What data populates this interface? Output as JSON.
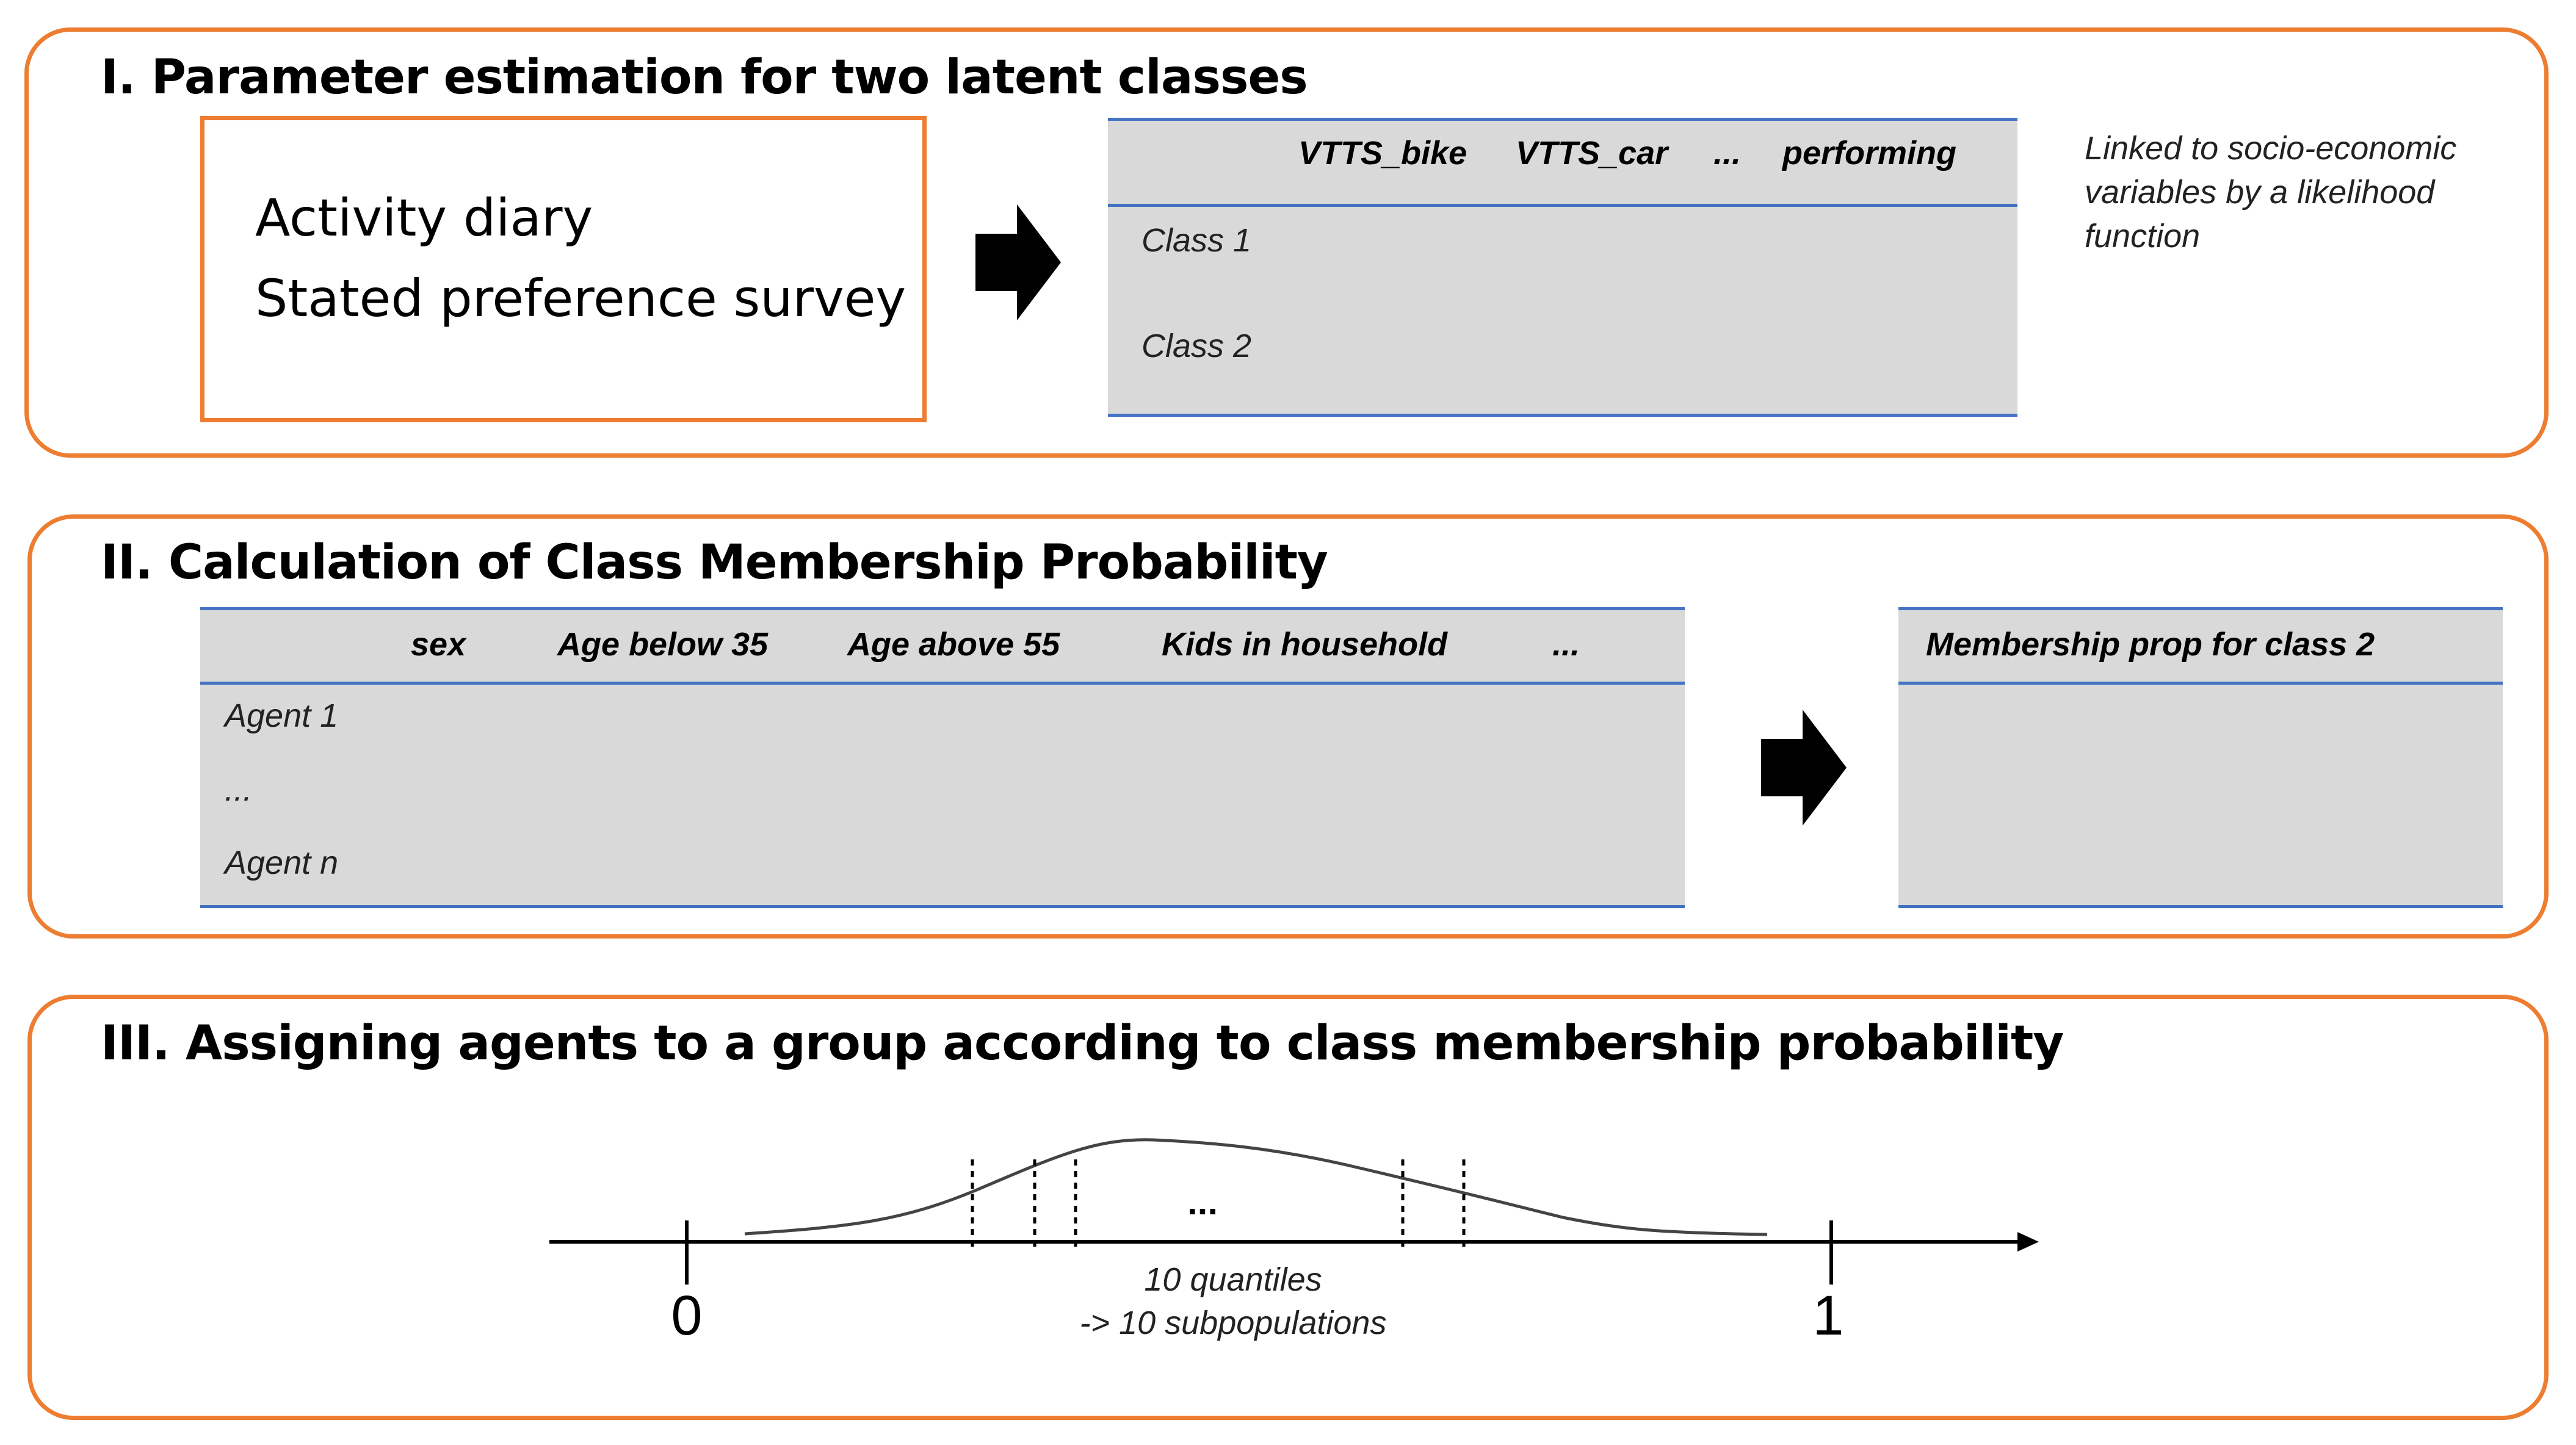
{
  "panel1": {
    "title": "I. Parameter estimation for two latent classes",
    "inputs": [
      "Activity diary",
      "Stated preference survey"
    ],
    "table": {
      "headers": [
        "VTTS_bike",
        "VTTS_car",
        "...",
        "performing"
      ],
      "rows": [
        "Class 1",
        "Class 2"
      ]
    },
    "note": "Linked to socio-economic variables by a likelihood function"
  },
  "panel2": {
    "title": "II. Calculation of Class Membership  Probability",
    "table": {
      "headers": [
        "sex",
        "Age below 35",
        "Age above 55",
        "Kids in household",
        "..."
      ],
      "rows": [
        "Agent 1",
        "...",
        "Agent n"
      ]
    },
    "result_header": "Membership prop for class 2"
  },
  "panel3": {
    "title": "III. Assigning agents to a group according to class membership probability",
    "axis_start": "0",
    "axis_end": "1",
    "ellipsis": "...",
    "caption_line1": "10 quantiles",
    "caption_line2": "-> 10 subpopulations"
  },
  "colors": {
    "panel_border": "#ED7D31",
    "table_fill": "#D9D9D9",
    "table_rule": "#4472C4"
  }
}
